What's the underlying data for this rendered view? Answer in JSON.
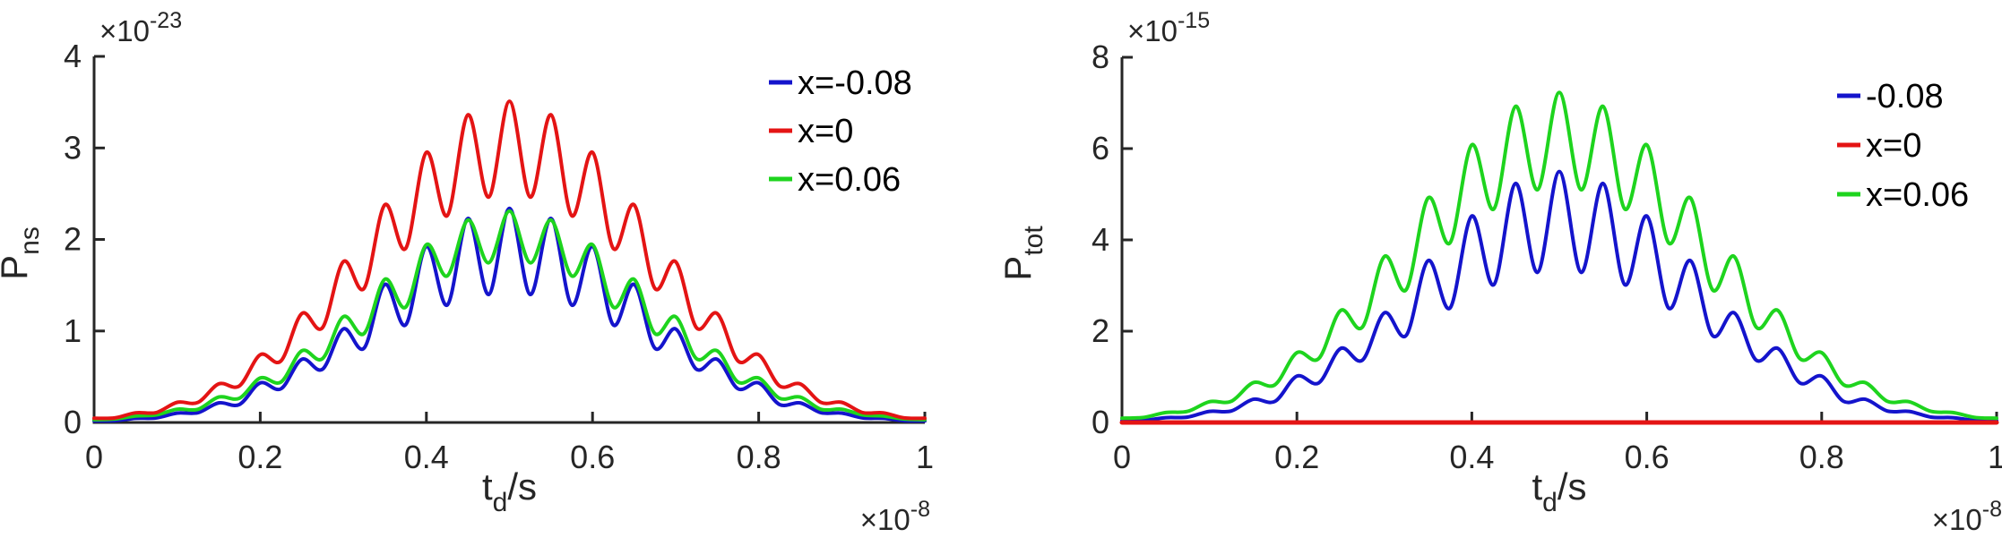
{
  "figure": {
    "background": "#ffffff",
    "axis_color": "#262626",
    "tick_label_color": "#262626",
    "legend_text_color": "#000000"
  },
  "chart_data": [
    {
      "type": "line",
      "title": "",
      "grid": false,
      "xlabel": {
        "base": "t",
        "sub": "d",
        "suffix": "/s"
      },
      "ylabel": {
        "base": "P",
        "sub": "ns"
      },
      "y_exponent": {
        "mant": "×10",
        "exp": "-23"
      },
      "x_exponent": {
        "mant": "×10",
        "exp": "-8"
      },
      "xlim": [
        0,
        1
      ],
      "ylim": [
        0,
        4
      ],
      "x_ticks": {
        "values": [
          0,
          0.2,
          0.4,
          0.6,
          0.8,
          1
        ],
        "labels": [
          "0",
          "0.2",
          "0.4",
          "0.6",
          "0.8",
          "1"
        ]
      },
      "y_ticks": {
        "values": [
          0,
          1,
          2,
          3,
          4
        ],
        "labels": [
          "0",
          "1",
          "2",
          "3",
          "4"
        ]
      },
      "legend_position": "upper-right",
      "x": [
        0,
        0.025,
        0.05,
        0.075,
        0.1,
        0.125,
        0.15,
        0.175,
        0.2,
        0.225,
        0.25,
        0.275,
        0.3,
        0.325,
        0.35,
        0.375,
        0.4,
        0.425,
        0.45,
        0.475,
        0.5,
        0.525,
        0.55,
        0.575,
        0.6,
        0.625,
        0.65,
        0.675,
        0.7,
        0.725,
        0.75,
        0.775,
        0.8,
        0.825,
        0.85,
        0.875,
        0.9,
        0.925,
        0.95,
        0.975,
        1
      ],
      "series": [
        {
          "name": "x=-0.08",
          "color": "#1414cc",
          "z": 1,
          "width": 4,
          "values": [
            0.018,
            0.02,
            0.045,
            0.05,
            0.103,
            0.107,
            0.214,
            0.197,
            0.432,
            0.369,
            0.69,
            0.582,
            1.022,
            0.813,
            1.508,
            1.066,
            1.925,
            1.283,
            2.229,
            1.399,
            2.34,
            1.399,
            2.229,
            1.283,
            1.925,
            1.066,
            1.508,
            0.813,
            1.022,
            0.582,
            0.69,
            0.369,
            0.432,
            0.197,
            0.214,
            0.107,
            0.103,
            0.05,
            0.045,
            0.02,
            0.018
          ]
        },
        {
          "name": "x=0",
          "color": "#e41414",
          "z": 3,
          "width": 4,
          "values": [
            0.046,
            0.05,
            0.106,
            0.109,
            0.22,
            0.219,
            0.422,
            0.4,
            0.74,
            0.673,
            1.19,
            1.037,
            1.757,
            1.466,
            2.378,
            1.9,
            2.952,
            2.259,
            3.362,
            2.463,
            3.51,
            2.463,
            3.362,
            2.259,
            2.952,
            1.9,
            2.378,
            1.466,
            1.757,
            1.037,
            1.19,
            0.673,
            0.74,
            0.4,
            0.422,
            0.219,
            0.22,
            0.109,
            0.106,
            0.05,
            0.046
          ]
        },
        {
          "name": "x=0.06",
          "color": "#1ed41e",
          "z": 2,
          "width": 4,
          "values": [
            0.03,
            0.038,
            0.07,
            0.083,
            0.145,
            0.144,
            0.278,
            0.265,
            0.486,
            0.442,
            0.783,
            0.697,
            1.156,
            0.972,
            1.565,
            1.26,
            1.943,
            1.601,
            2.212,
            1.745,
            2.31,
            1.745,
            2.212,
            1.601,
            1.943,
            1.26,
            1.565,
            0.972,
            1.156,
            0.697,
            0.783,
            0.442,
            0.486,
            0.265,
            0.278,
            0.144,
            0.145,
            0.083,
            0.07,
            0.038,
            0.03
          ]
        }
      ]
    },
    {
      "type": "line",
      "title": "",
      "grid": false,
      "xlabel": {
        "base": "t",
        "sub": "d",
        "suffix": "/s"
      },
      "ylabel": {
        "base": "P",
        "sub": "tot"
      },
      "y_exponent": {
        "mant": "×10",
        "exp": "-15"
      },
      "x_exponent": {
        "mant": "×10",
        "exp": "-8"
      },
      "xlim": [
        0,
        1
      ],
      "ylim": [
        0,
        8
      ],
      "x_ticks": {
        "values": [
          0,
          0.2,
          0.4,
          0.6,
          0.8,
          1
        ],
        "labels": [
          "0",
          "0.2",
          "0.4",
          "0.6",
          "0.8",
          "1"
        ]
      },
      "y_ticks": {
        "values": [
          0,
          2,
          4,
          6,
          8
        ],
        "labels": [
          "0",
          "2",
          "4",
          "6",
          "8"
        ]
      },
      "legend_position": "upper-right",
      "x": [
        0,
        0.025,
        0.05,
        0.075,
        0.1,
        0.125,
        0.15,
        0.175,
        0.2,
        0.225,
        0.25,
        0.275,
        0.3,
        0.325,
        0.35,
        0.375,
        0.4,
        0.425,
        0.45,
        0.475,
        0.5,
        0.525,
        0.55,
        0.575,
        0.6,
        0.625,
        0.65,
        0.675,
        0.7,
        0.725,
        0.75,
        0.775,
        0.8,
        0.825,
        0.85,
        0.875,
        0.9,
        0.925,
        0.95,
        0.975,
        1
      ],
      "series": [
        {
          "name": "-0.08",
          "color": "#1414cc",
          "z": 1,
          "width": 4,
          "values": [
            0.042,
            0.048,
            0.105,
            0.117,
            0.243,
            0.251,
            0.508,
            0.462,
            1.015,
            0.867,
            1.622,
            1.367,
            2.402,
            1.91,
            3.545,
            2.505,
            4.524,
            3.015,
            5.238,
            3.288,
            5.499,
            3.288,
            5.238,
            3.015,
            4.524,
            2.505,
            3.545,
            1.91,
            2.402,
            1.367,
            1.622,
            0.867,
            1.015,
            0.462,
            0.508,
            0.251,
            0.243,
            0.117,
            0.105,
            0.048,
            0.042
          ]
        },
        {
          "name": "x=0",
          "color": "#e41414",
          "z": 3,
          "width": 5,
          "values": [
            0,
            0,
            0,
            0,
            0,
            0,
            0,
            0,
            0,
            0,
            0,
            0,
            0,
            0,
            0,
            0,
            0,
            0,
            0,
            0,
            0,
            0,
            0,
            0,
            0,
            0,
            0,
            0,
            0,
            0,
            0,
            0,
            0,
            0,
            0,
            0,
            0,
            0,
            0,
            0,
            0
          ]
        },
        {
          "name": "x=0.06",
          "color": "#1ed41e",
          "z": 2,
          "width": 4,
          "values": [
            0.095,
            0.112,
            0.218,
            0.244,
            0.454,
            0.464,
            0.873,
            0.828,
            1.53,
            1.4,
            2.452,
            2.092,
            3.635,
            2.911,
            4.919,
            3.933,
            6.083,
            4.675,
            6.926,
            5.098,
            7.232,
            5.098,
            6.926,
            4.675,
            6.083,
            3.933,
            4.919,
            2.911,
            3.635,
            2.092,
            2.452,
            1.4,
            1.53,
            0.828,
            0.873,
            0.464,
            0.454,
            0.244,
            0.218,
            0.112,
            0.095
          ]
        }
      ]
    }
  ]
}
